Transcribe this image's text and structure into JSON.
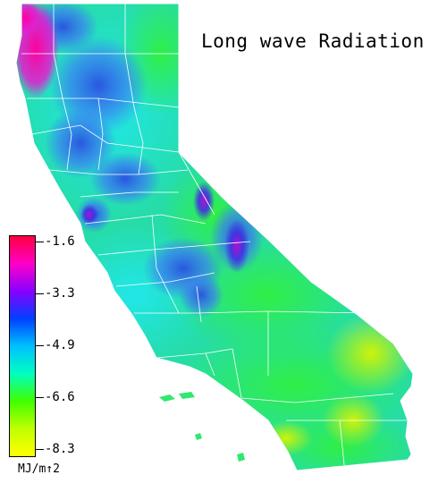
{
  "map": {
    "title": "Long wave Radiation",
    "subject": "California",
    "layer": "Long wave Radiation",
    "colors": {
      "magenta": "#ff1aa0",
      "purple": "#8a1ad6",
      "blue": "#2e5ee6",
      "cyan": "#22e0ee",
      "green": "#2ef04a",
      "yellow": "#d8f200",
      "boundary": "#ffffff",
      "background": "#ffffff"
    }
  },
  "legend": {
    "ticks": [
      "-1.6",
      "-3.3",
      "-4.9",
      "-6.6",
      "-8.3"
    ],
    "unit": "MJ/m↑2",
    "gradient": [
      "#ff0040",
      "#ff00c8",
      "#8800ff",
      "#0040ff",
      "#00c0ff",
      "#00ffc0",
      "#40ff00",
      "#c0ff00",
      "#ffff00"
    ]
  }
}
